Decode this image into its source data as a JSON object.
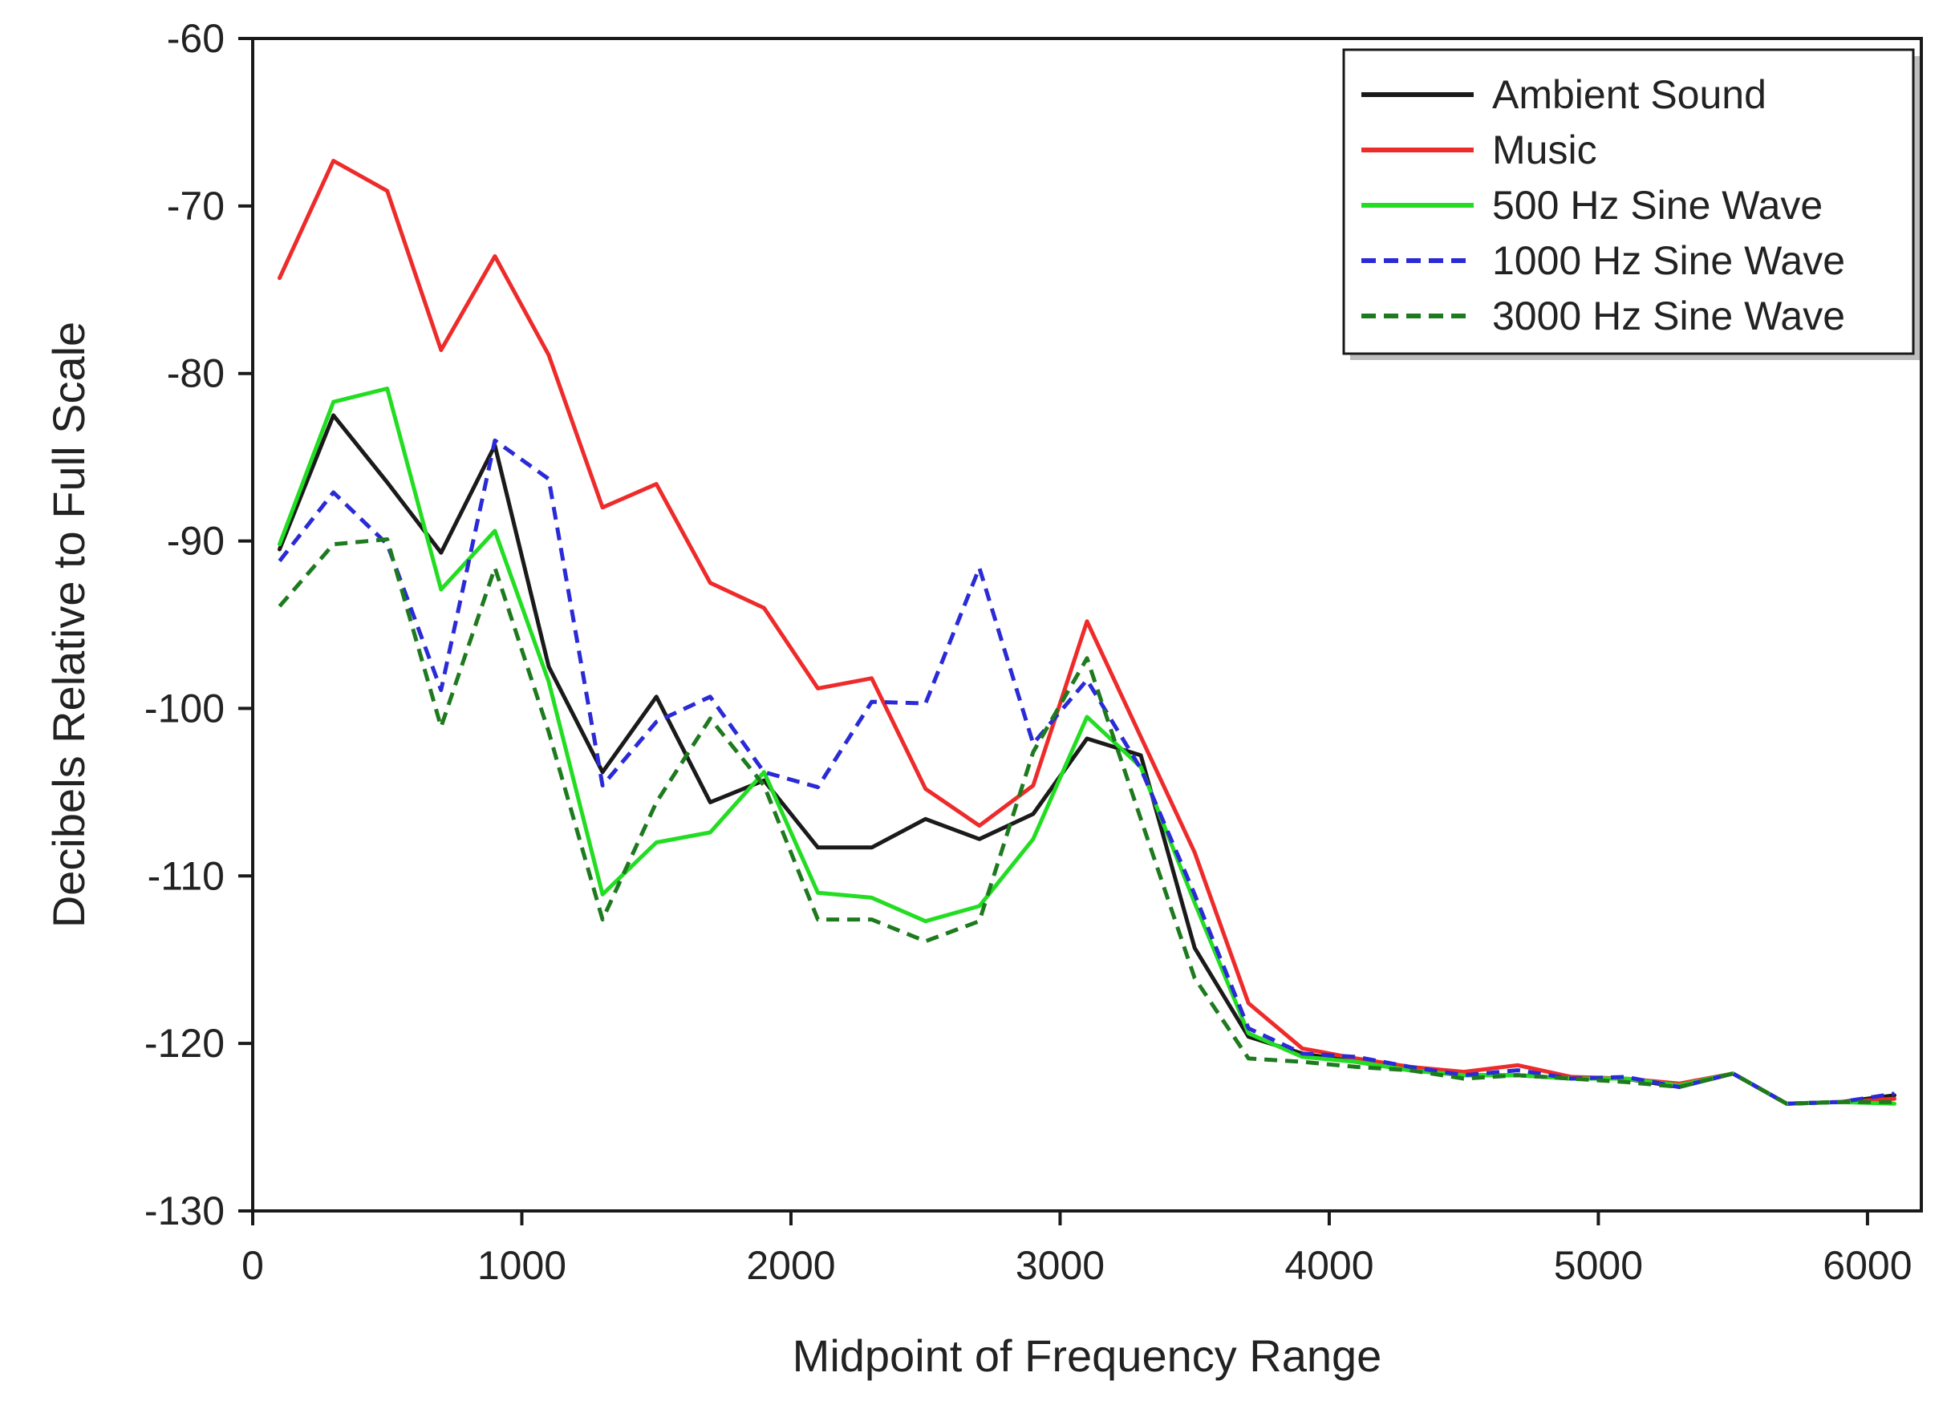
{
  "chart_data": {
    "type": "line",
    "title": "",
    "xlabel": "Midpoint of Frequency Range",
    "ylabel": "Decibels Relative to Full Scale",
    "xlim": [
      0,
      6200
    ],
    "ylim": [
      -130,
      -60
    ],
    "xticks": [
      0,
      1000,
      2000,
      3000,
      4000,
      5000,
      6000
    ],
    "yticks": [
      -60,
      -70,
      -80,
      -90,
      -100,
      -110,
      -120,
      -130
    ],
    "xtick_labels": [
      "0",
      "1000",
      "2000",
      "3000",
      "4000",
      "5000",
      "6000"
    ],
    "ytick_labels": [
      "-60",
      "-70",
      "-80",
      "-90",
      "-100",
      "-110",
      "-120",
      "-130"
    ],
    "grid": false,
    "legend_position": "top-right",
    "x": [
      100,
      300,
      500,
      700,
      900,
      1100,
      1300,
      1500,
      1700,
      1900,
      2100,
      2300,
      2500,
      2700,
      2900,
      3100,
      3300,
      3500,
      3700,
      3900,
      4100,
      4300,
      4500,
      4700,
      4900,
      5100,
      5300,
      5500,
      5700,
      5900,
      6100
    ],
    "series": [
      {
        "name": "Ambient Sound",
        "color": "#1a1a1a",
        "dash": "solid",
        "values": [
          -90.5,
          -82.5,
          -86.5,
          -90.7,
          -84.3,
          -97.5,
          -103.8,
          -99.3,
          -105.6,
          -104.3,
          -108.3,
          -108.3,
          -106.6,
          -107.8,
          -106.3,
          -101.8,
          -102.8,
          -114.3,
          -119.6,
          -120.6,
          -121.1,
          -121.6,
          -121.9,
          -121.9,
          -122.1,
          -122.1,
          -122.6,
          -121.8,
          -123.6,
          -123.5,
          -123.1
        ]
      },
      {
        "name": "Music",
        "color": "#ee2b2b",
        "dash": "solid",
        "values": [
          -74.3,
          -67.3,
          -69.1,
          -78.6,
          -73.0,
          -78.9,
          -88.0,
          -86.6,
          -92.5,
          -94.0,
          -98.8,
          -98.2,
          -104.8,
          -107.0,
          -104.6,
          -94.8,
          -101.7,
          -108.6,
          -117.6,
          -120.3,
          -120.9,
          -121.4,
          -121.7,
          -121.3,
          -122.0,
          -122.1,
          -122.4,
          -121.8,
          -123.6,
          -123.5,
          -123.3
        ]
      },
      {
        "name": "500 Hz Sine Wave",
        "color": "#22dd22",
        "dash": "solid",
        "values": [
          -90.2,
          -81.7,
          -80.9,
          -92.9,
          -89.4,
          -98.4,
          -111.1,
          -108.0,
          -107.4,
          -103.8,
          -111.0,
          -111.3,
          -112.7,
          -111.8,
          -107.8,
          -100.5,
          -103.5,
          -111.6,
          -119.4,
          -120.8,
          -121.1,
          -121.6,
          -121.9,
          -121.9,
          -122.1,
          -122.1,
          -122.5,
          -121.8,
          -123.6,
          -123.5,
          -123.6
        ]
      },
      {
        "name": "1000 Hz Sine Wave",
        "color": "#2a2ad6",
        "dash": "dashed",
        "values": [
          -91.2,
          -87.1,
          -90.2,
          -98.9,
          -84.0,
          -86.3,
          -104.6,
          -100.8,
          -99.3,
          -103.8,
          -104.7,
          -99.6,
          -99.7,
          -91.6,
          -102.1,
          -98.3,
          -103.6,
          -111.1,
          -119.1,
          -120.6,
          -120.8,
          -121.4,
          -121.9,
          -121.6,
          -122.1,
          -122.0,
          -122.6,
          -121.8,
          -123.6,
          -123.5,
          -123.0
        ]
      },
      {
        "name": "3000 Hz Sine Wave",
        "color": "#1e7a1e",
        "dash": "dashed",
        "values": [
          -93.9,
          -90.2,
          -89.9,
          -101.1,
          -91.6,
          -101.4,
          -112.6,
          -105.6,
          -100.6,
          -104.6,
          -112.6,
          -112.6,
          -113.9,
          -112.7,
          -102.6,
          -97.0,
          -106.6,
          -116.1,
          -120.9,
          -121.1,
          -121.4,
          -121.6,
          -122.1,
          -121.9,
          -122.1,
          -122.3,
          -122.6,
          -121.8,
          -123.6,
          -123.5,
          -123.5
        ]
      }
    ]
  }
}
